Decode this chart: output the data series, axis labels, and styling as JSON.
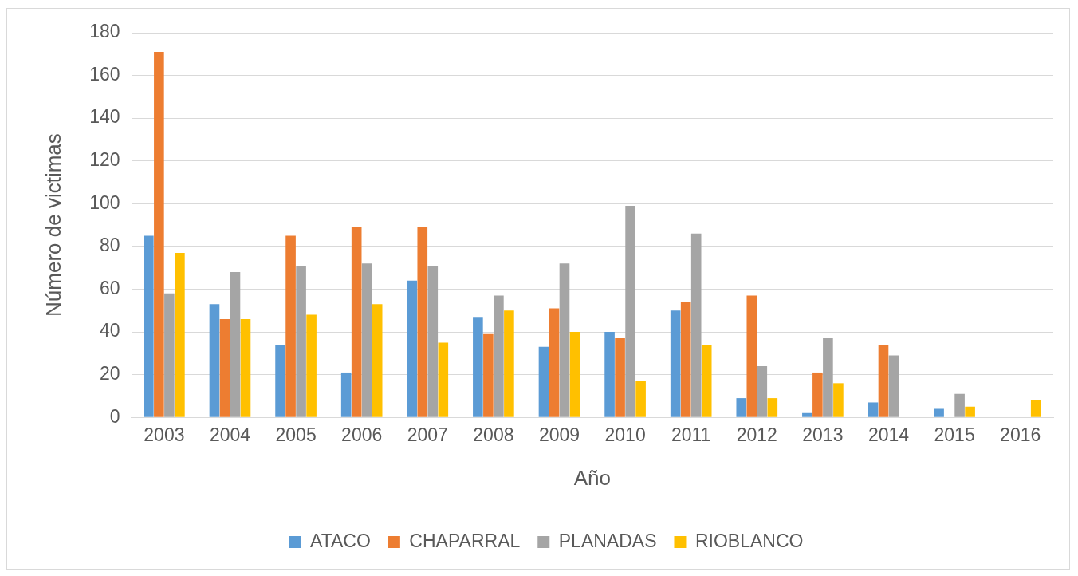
{
  "chart_data": {
    "type": "bar",
    "xlabel": "Año",
    "ylabel": "Número de victimas",
    "categories": [
      "2003",
      "2004",
      "2005",
      "2006",
      "2007",
      "2008",
      "2009",
      "2010",
      "2011",
      "2012",
      "2013",
      "2014",
      "2015",
      "2016"
    ],
    "series": [
      {
        "name": "ATACO",
        "color": "#5b9bd5",
        "values": [
          85,
          53,
          34,
          21,
          64,
          47,
          33,
          40,
          50,
          9,
          2,
          7,
          4,
          0
        ]
      },
      {
        "name": "CHAPARRAL",
        "color": "#ed7d31",
        "values": [
          171,
          46,
          85,
          89,
          89,
          39,
          51,
          37,
          54,
          57,
          21,
          34,
          0,
          0
        ]
      },
      {
        "name": "PLANADAS",
        "color": "#a5a5a5",
        "values": [
          58,
          68,
          71,
          72,
          71,
          57,
          72,
          99,
          86,
          24,
          37,
          29,
          11,
          0
        ]
      },
      {
        "name": "RIOBLANCO",
        "color": "#ffc000",
        "values": [
          77,
          46,
          48,
          53,
          35,
          50,
          40,
          17,
          34,
          9,
          16,
          0,
          5,
          8
        ]
      }
    ],
    "ylim": [
      0,
      180
    ],
    "yticks": [
      0,
      20,
      40,
      60,
      80,
      100,
      120,
      140,
      160,
      180
    ],
    "grid": "y",
    "legend": "bottom"
  }
}
